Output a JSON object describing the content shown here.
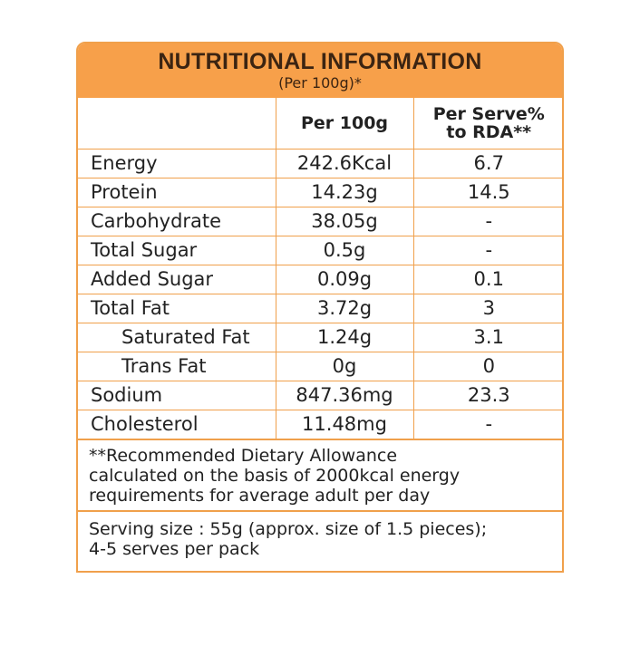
{
  "header": {
    "title": "NUTRITIONAL INFORMATION",
    "subtitle": "(Per 100g)*"
  },
  "columns": {
    "per100g": "Per 100g",
    "rda_line1": "Per Serve%",
    "rda_line2": "to RDA**"
  },
  "rows": [
    {
      "name": "Energy",
      "per100g": "242.6Kcal",
      "rda": "6.7"
    },
    {
      "name": "Protein",
      "per100g": "14.23g",
      "rda": "14.5"
    },
    {
      "name": "Carbohydrate",
      "per100g": "38.05g",
      "rda": "-"
    },
    {
      "name": "Total Sugar",
      "per100g": "0.5g",
      "rda": "-"
    },
    {
      "name": "Added Sugar",
      "per100g": "0.09g",
      "rda": "0.1"
    },
    {
      "name": "Total Fat",
      "per100g": "3.72g",
      "rda": "3"
    },
    {
      "name": "Saturated Fat",
      "per100g": "1.24g",
      "rda": "3.1"
    },
    {
      "name": "Trans Fat",
      "per100g": "0g",
      "rda": "0"
    },
    {
      "name": "Sodium",
      "per100g": "847.36mg",
      "rda": "23.3"
    },
    {
      "name": "Cholesterol",
      "per100g": "11.48mg",
      "rda": "-"
    }
  ],
  "footnote": {
    "line1": "**Recommended Dietary Allowance",
    "line2": "calculated on the basis of 2000kcal energy",
    "line3": "requirements for average adult per day"
  },
  "serving": {
    "line1": "Serving size : 55g (approx. size of 1.5 pieces);",
    "line2": "4-5 serves per pack"
  },
  "colors": {
    "header_bg": "#f7a04a",
    "border": "#f0a04b"
  }
}
